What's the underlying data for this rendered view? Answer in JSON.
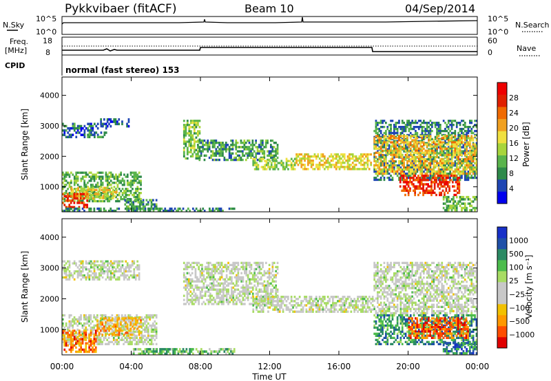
{
  "header": {
    "radar": "Pykkvibaer (fitACF)",
    "beam": "Beam 10",
    "date": "04/Sep/2014"
  },
  "top_panels": {
    "nsky_label": "N.Sky",
    "nsearch_label": "N.Search",
    "noise_ticks": [
      "10^5",
      "10^0"
    ],
    "freq_label": "Freq.",
    "freq_unit": "[MHz]",
    "freq_ticks": [
      "18",
      "8"
    ],
    "nave_label": "Nave",
    "nave_ticks": [
      "60",
      "0"
    ],
    "cpid_label": "CPID",
    "cpid_text": "normal (fast stereo) 153"
  },
  "colors": {
    "power": [
      "#0000ee",
      "#1f46b4",
      "#2e8a4a",
      "#5ab44c",
      "#a8d53c",
      "#f0e040",
      "#f0a020",
      "#f06a00",
      "#e02000",
      "#ee0000"
    ],
    "velocity": [
      "#e00000",
      "#ff4d00",
      "#ff9900",
      "#f2c100",
      "#c8c8c8",
      "#c8c8c8",
      "#a8dc64",
      "#4cbc4c",
      "#2b8a64",
      "#1f50a8",
      "#1730c8"
    ],
    "ground_scatter": "#c8c8c8"
  },
  "chart_data": [
    {
      "type": "heatmap",
      "panel": "power",
      "xlabel": "Time UT",
      "ylabel": "Slant Range [km]",
      "x_ticks": [
        "00:00",
        "04:00",
        "08:00",
        "12:00",
        "16:00",
        "20:00",
        "00:00"
      ],
      "xlim_hours": [
        0,
        24
      ],
      "ylim_km": [
        180,
        4600
      ],
      "y_ticks": [
        1000,
        2000,
        3000,
        4000
      ],
      "colorbar": {
        "label": "Power [dB]",
        "range": [
          0,
          32
        ],
        "ticks": [
          4,
          8,
          12,
          16,
          20,
          24,
          28
        ]
      },
      "regions": [
        {
          "t": [
            0.0,
            2.6
          ],
          "r": [
            2600,
            3100
          ],
          "level": 0.2
        },
        {
          "t": [
            2.2,
            3.9
          ],
          "r": [
            2950,
            3250
          ],
          "level": 0.15
        },
        {
          "t": [
            0.0,
            4.6
          ],
          "r": [
            500,
            1500
          ],
          "level": 0.35
        },
        {
          "t": [
            0.5,
            3.2
          ],
          "r": [
            600,
            1000
          ],
          "level": 0.55
        },
        {
          "t": [
            0.0,
            1.5
          ],
          "r": [
            300,
            800
          ],
          "level": 0.8
        },
        {
          "t": [
            3.6,
            5.5
          ],
          "r": [
            250,
            600
          ],
          "level": 0.3
        },
        {
          "t": [
            0.0,
            10.0
          ],
          "r": [
            180,
            320
          ],
          "level": 0.25
        },
        {
          "t": [
            7.0,
            8.0
          ],
          "r": [
            1900,
            3200
          ],
          "level": 0.4
        },
        {
          "t": [
            7.8,
            12.5
          ],
          "r": [
            1850,
            2550
          ],
          "level": 0.3
        },
        {
          "t": [
            11.0,
            13.5
          ],
          "r": [
            1550,
            1950
          ],
          "level": 0.45
        },
        {
          "t": [
            13.5,
            17.9
          ],
          "r": [
            1550,
            2100
          ],
          "level": 0.55
        },
        {
          "t": [
            18.0,
            24.0
          ],
          "r": [
            1200,
            3200
          ],
          "level": 0.25
        },
        {
          "t": [
            18.0,
            24.0
          ],
          "r": [
            1400,
            2700
          ],
          "level": 0.6
        },
        {
          "t": [
            19.5,
            23.0
          ],
          "r": [
            700,
            1400
          ],
          "level": 0.85
        },
        {
          "t": [
            22.0,
            24.0
          ],
          "r": [
            200,
            700
          ],
          "level": 0.35
        }
      ]
    },
    {
      "type": "heatmap",
      "panel": "velocity",
      "xlabel": "Time UT",
      "ylabel": "Slant Range [km]",
      "x_ticks": [
        "00:00",
        "04:00",
        "08:00",
        "12:00",
        "16:00",
        "20:00",
        "00:00"
      ],
      "xlim_hours": [
        0,
        24
      ],
      "ylim_km": [
        180,
        4600
      ],
      "y_ticks": [
        1000,
        2000,
        3000,
        4000
      ],
      "colorbar": {
        "label": "Velocity [m s⁻¹]",
        "ticks": [
          "1000",
          "500",
          "100",
          "25",
          "−25",
          "−100",
          "−500",
          "−1000"
        ]
      },
      "regions": [
        {
          "t": [
            0.0,
            4.5
          ],
          "r": [
            2600,
            3250
          ],
          "level": 0.5
        },
        {
          "t": [
            0.0,
            5.5
          ],
          "r": [
            500,
            1500
          ],
          "level": 0.5
        },
        {
          "t": [
            0.0,
            2.0
          ],
          "r": [
            250,
            1000
          ],
          "level": 0.2
        },
        {
          "t": [
            2.0,
            4.6
          ],
          "r": [
            800,
            1400
          ],
          "level": 0.3
        },
        {
          "t": [
            4.0,
            10.0
          ],
          "r": [
            180,
            400
          ],
          "level": 0.65
        },
        {
          "t": [
            7.0,
            12.5
          ],
          "r": [
            1800,
            3200
          ],
          "level": 0.5
        },
        {
          "t": [
            11.0,
            18.0
          ],
          "r": [
            1550,
            2100
          ],
          "level": 0.5
        },
        {
          "t": [
            18.0,
            24.0
          ],
          "r": [
            1500,
            3200
          ],
          "level": 0.5
        },
        {
          "t": [
            18.0,
            24.0
          ],
          "r": [
            500,
            1500
          ],
          "level": 0.75
        },
        {
          "t": [
            20.0,
            23.5
          ],
          "r": [
            700,
            1400
          ],
          "level": 0.15
        },
        {
          "t": [
            22.0,
            24.0
          ],
          "r": [
            200,
            600
          ],
          "level": 0.8
        }
      ]
    }
  ]
}
